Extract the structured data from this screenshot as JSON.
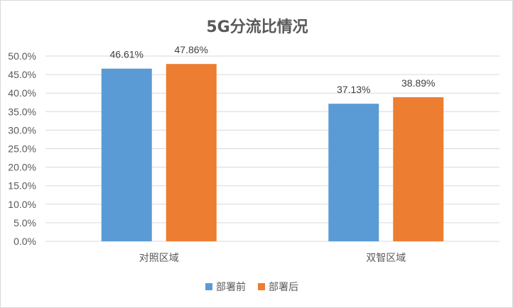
{
  "chart_data": {
    "type": "bar",
    "title": "5G分流比情况",
    "categories": [
      "对照区域",
      "双智区域"
    ],
    "series": [
      {
        "name": "部署前",
        "values": [
          46.61,
          37.13
        ],
        "labels": [
          "46.61%",
          "37.13%"
        ],
        "color": "#5b9bd5"
      },
      {
        "name": "部署后",
        "values": [
          47.86,
          38.89
        ],
        "labels": [
          "47.86%",
          "38.89%"
        ],
        "color": "#ed7d31"
      }
    ],
    "ylim": [
      0,
      50
    ],
    "yticks": [
      "0.0%",
      "5.0%",
      "10.0%",
      "15.0%",
      "20.0%",
      "25.0%",
      "30.0%",
      "35.0%",
      "40.0%",
      "45.0%",
      "50.0%"
    ],
    "grid": true,
    "legend_position": "bottom",
    "gridline_color": "#d9d9d9"
  }
}
